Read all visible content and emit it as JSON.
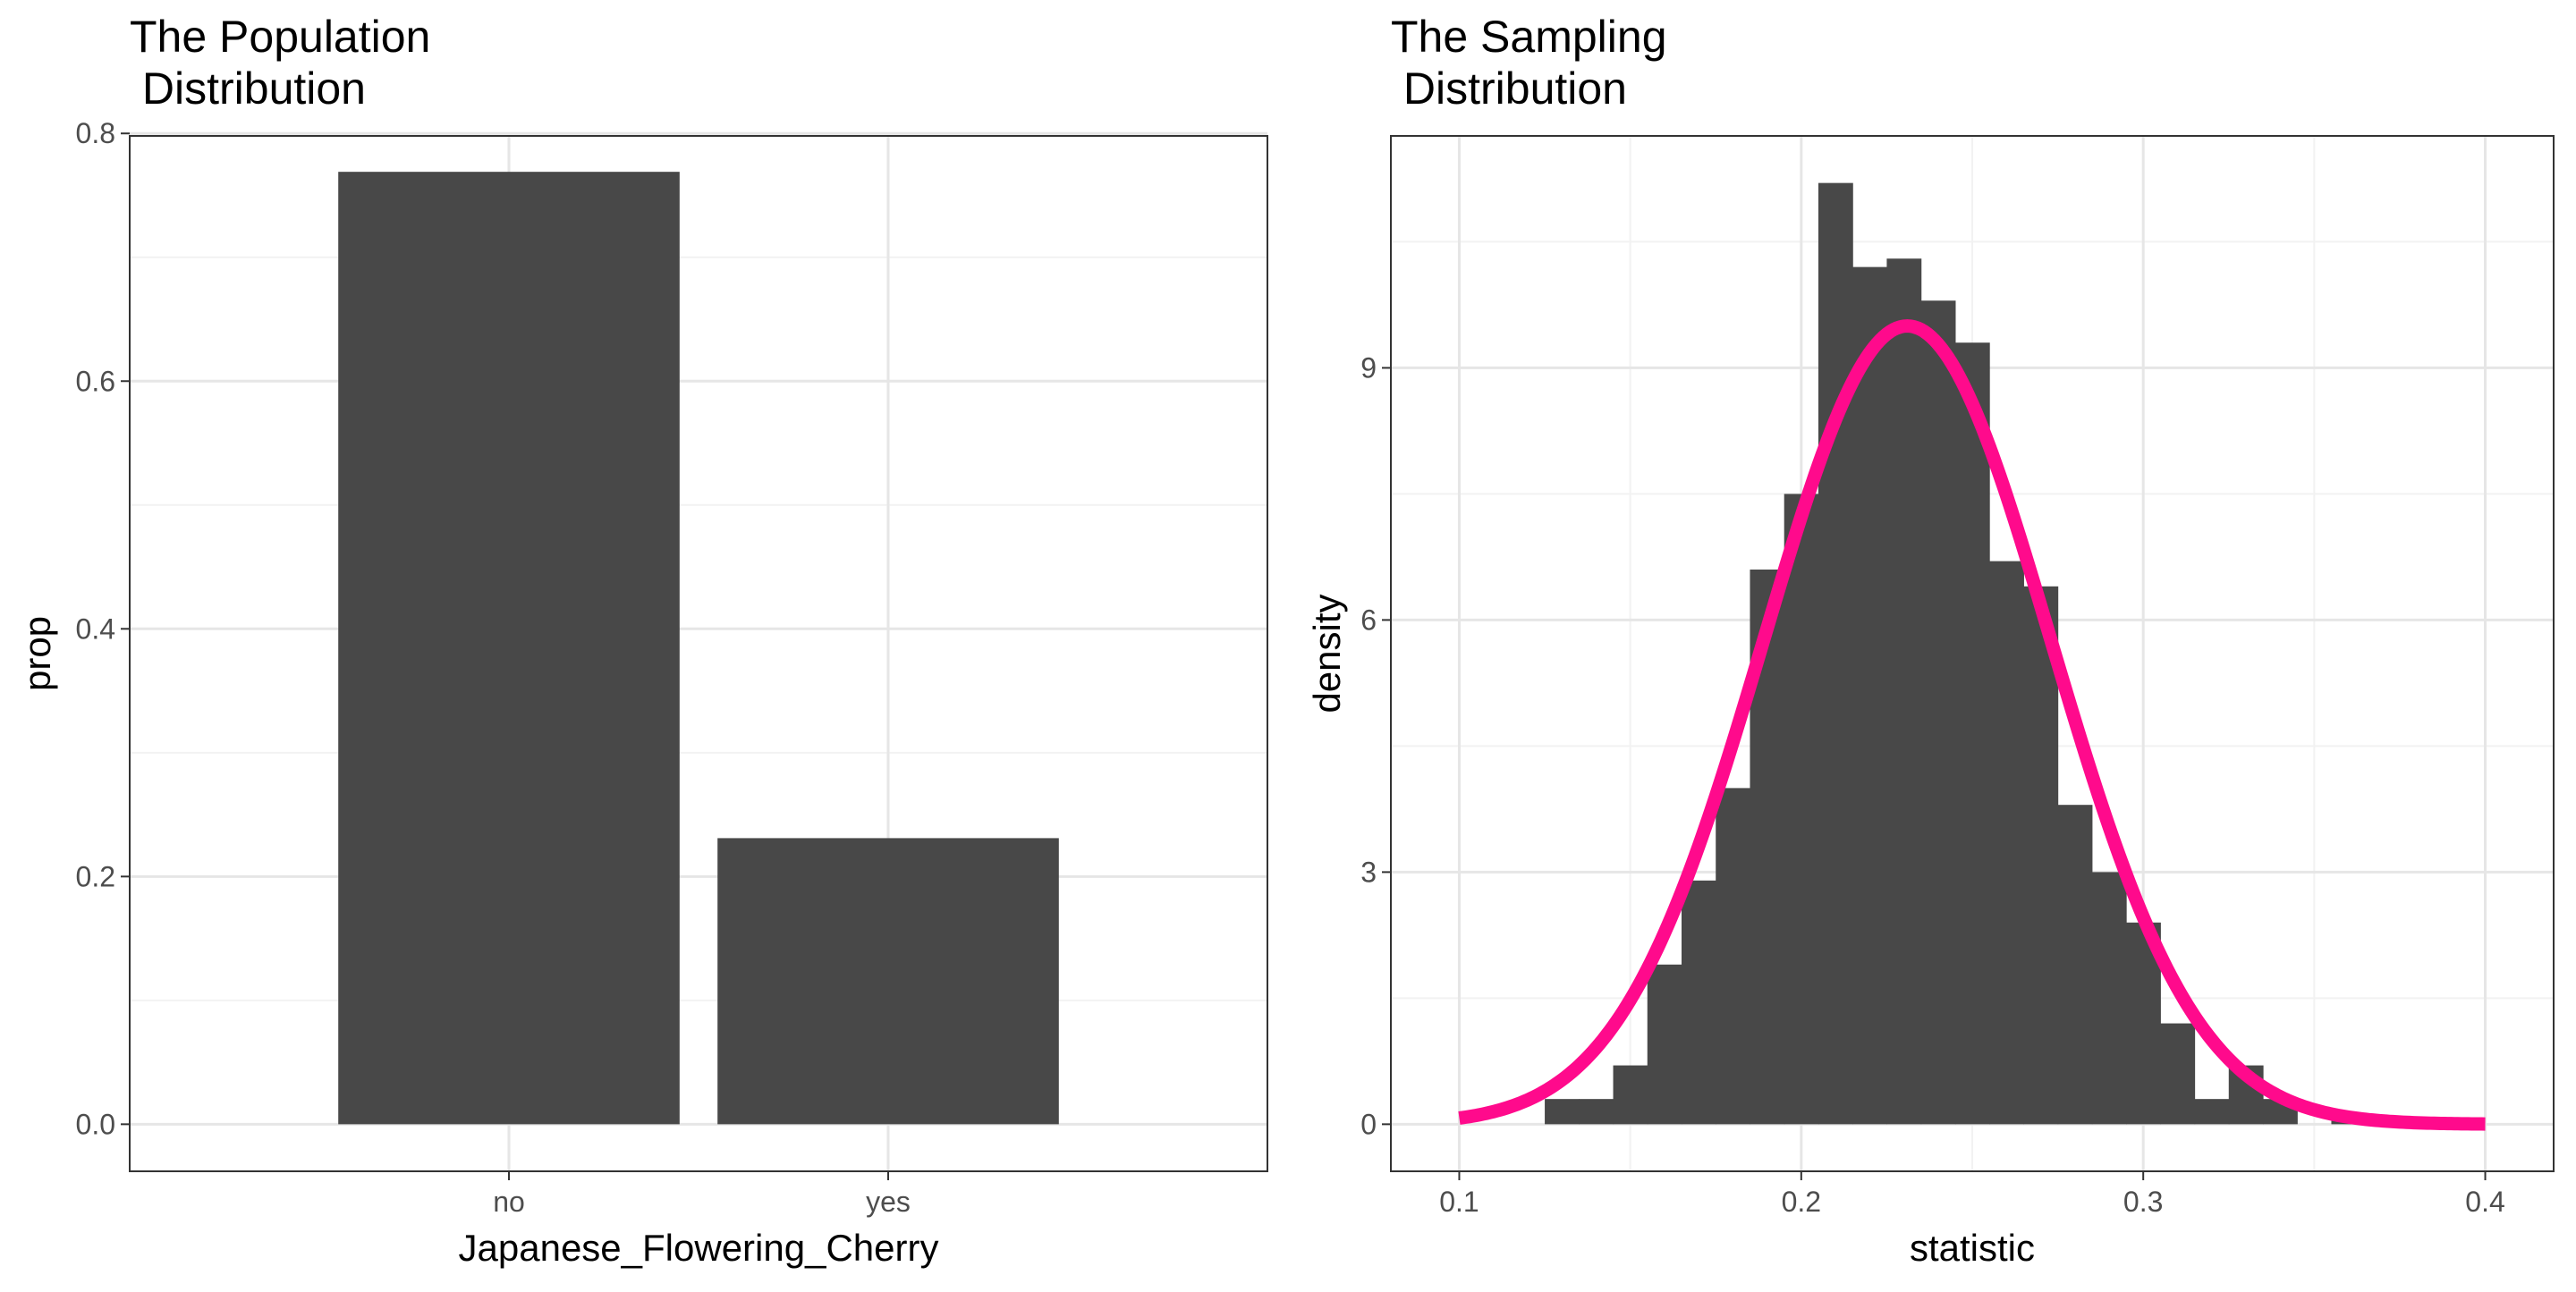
{
  "colors": {
    "bar": "#484848",
    "curve": "#ff0a8c",
    "grid_major": "#e6e6e6",
    "grid_minor": "#f2f2f2",
    "panel_border": "#333333",
    "tick_text": "#4d4d4d"
  },
  "chart_data": [
    {
      "type": "bar",
      "title_line1": "The Population",
      "title_line2": " Distribution",
      "xlabel": "Japanese_Flowering_Cherry",
      "ylabel": "prop",
      "categories": [
        "no",
        "yes"
      ],
      "values": [
        0.769,
        0.231
      ],
      "ylim": [
        -0.038,
        0.798
      ],
      "yticks": [
        0.0,
        0.2,
        0.4,
        0.6,
        0.8
      ],
      "ytick_labels": [
        "0.0",
        "0.2",
        "0.4",
        "0.6",
        "0.8"
      ],
      "grid": true
    },
    {
      "type": "histogram",
      "title_line1": "The Sampling",
      "title_line2": " Distribution",
      "xlabel": "statistic",
      "ylabel": "density",
      "bin_width": 0.01,
      "bins": [
        {
          "x0": 0.125,
          "x1": 0.135,
          "density": 0.3
        },
        {
          "x0": 0.135,
          "x1": 0.145,
          "density": 0.3
        },
        {
          "x0": 0.145,
          "x1": 0.155,
          "density": 0.7
        },
        {
          "x0": 0.155,
          "x1": 0.165,
          "density": 1.9
        },
        {
          "x0": 0.165,
          "x1": 0.175,
          "density": 2.9
        },
        {
          "x0": 0.175,
          "x1": 0.185,
          "density": 4.0
        },
        {
          "x0": 0.185,
          "x1": 0.195,
          "density": 6.6
        },
        {
          "x0": 0.195,
          "x1": 0.205,
          "density": 7.5
        },
        {
          "x0": 0.205,
          "x1": 0.215,
          "density": 11.2
        },
        {
          "x0": 0.215,
          "x1": 0.225,
          "density": 10.2
        },
        {
          "x0": 0.225,
          "x1": 0.235,
          "density": 10.3
        },
        {
          "x0": 0.235,
          "x1": 0.245,
          "density": 9.8
        },
        {
          "x0": 0.245,
          "x1": 0.255,
          "density": 9.3
        },
        {
          "x0": 0.255,
          "x1": 0.265,
          "density": 6.7
        },
        {
          "x0": 0.265,
          "x1": 0.275,
          "density": 6.4
        },
        {
          "x0": 0.275,
          "x1": 0.285,
          "density": 3.8
        },
        {
          "x0": 0.285,
          "x1": 0.295,
          "density": 3.0
        },
        {
          "x0": 0.295,
          "x1": 0.305,
          "density": 2.4
        },
        {
          "x0": 0.305,
          "x1": 0.315,
          "density": 1.2
        },
        {
          "x0": 0.315,
          "x1": 0.325,
          "density": 0.3
        },
        {
          "x0": 0.325,
          "x1": 0.335,
          "density": 0.7
        },
        {
          "x0": 0.335,
          "x1": 0.345,
          "density": 0.3
        },
        {
          "x0": 0.355,
          "x1": 0.365,
          "density": 0.1
        }
      ],
      "normal_curve": {
        "mean": 0.231,
        "sd": 0.042,
        "x_from": 0.1,
        "x_to": 0.4
      },
      "xlim": [
        0.08,
        0.42
      ],
      "ylim": [
        -0.56,
        11.76
      ],
      "xticks": [
        0.1,
        0.2,
        0.3,
        0.4
      ],
      "xtick_labels": [
        "0.1",
        "0.2",
        "0.3",
        "0.4"
      ],
      "yticks": [
        0,
        3,
        6,
        9
      ],
      "ytick_labels": [
        "0",
        "3",
        "6",
        "9"
      ],
      "grid": true
    }
  ]
}
